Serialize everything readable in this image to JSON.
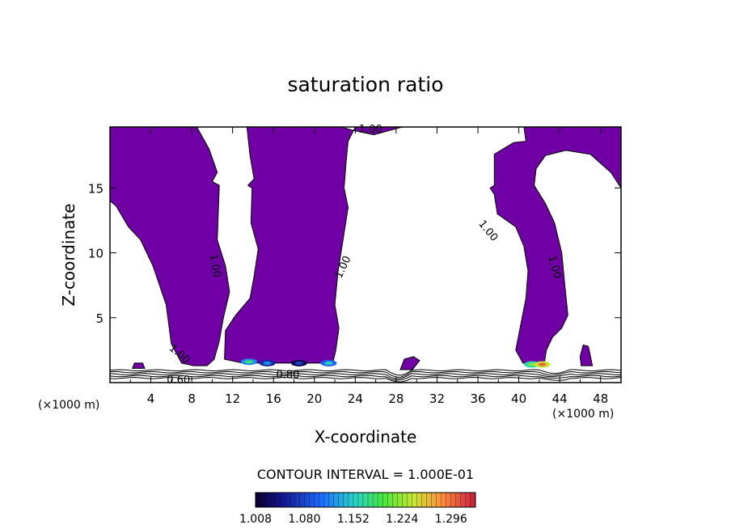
{
  "chart_data": {
    "type": "contour",
    "title": "saturation ratio",
    "xlabel": "X-coordinate",
    "ylabel": "Z-coordinate",
    "x_unit": "(×1000 m)",
    "x_ticks": [
      4,
      8,
      12,
      16,
      20,
      24,
      28,
      32,
      36,
      40,
      44,
      48
    ],
    "y_ticks": [
      5,
      10,
      15
    ],
    "xlim": [
      0,
      50
    ],
    "ylim": [
      0,
      19.7
    ],
    "contour_interval_text": "CONTOUR INTERVAL = 1.000E-01",
    "contour_labels": [
      {
        "text": "1.00",
        "x": 25.5,
        "y": 19.5,
        "rotate": 0
      },
      {
        "text": "1.00",
        "x": 10.3,
        "y": 9.0,
        "rotate": 80
      },
      {
        "text": "1.00",
        "x": 22.8,
        "y": 8.9,
        "rotate": -65
      },
      {
        "text": "1.00",
        "x": 37.0,
        "y": 11.7,
        "rotate": 50
      },
      {
        "text": "1.00",
        "x": 43.5,
        "y": 8.9,
        "rotate": 75
      },
      {
        "text": "1.00",
        "x": 6.8,
        "y": 2.2,
        "rotate": 40
      },
      {
        "text": "0.60",
        "x": 6.7,
        "y": 0.2,
        "rotate": 0
      },
      {
        "text": "0.80",
        "x": 17.4,
        "y": 0.6,
        "rotate": 0
      }
    ],
    "colorbar": {
      "tick_labels": [
        "1.008",
        "1.080",
        "1.152",
        "1.224",
        "1.296"
      ],
      "min": 1.008,
      "max": 1.332
    },
    "colors": {
      "fill": "#7000a6",
      "line": "#000000"
    },
    "supersaturated_regions": [
      [
        [
          0,
          14
        ],
        [
          0,
          19.7
        ],
        [
          8.5,
          19.7
        ],
        [
          9.7,
          18
        ],
        [
          10.5,
          16.2
        ],
        [
          10,
          15.5
        ],
        [
          10.7,
          15.2
        ],
        [
          10.5,
          11
        ],
        [
          11.3,
          9
        ],
        [
          11.7,
          7
        ],
        [
          11.1,
          5
        ],
        [
          10.7,
          3.2
        ],
        [
          10.2,
          1.8
        ],
        [
          9.5,
          1.3
        ],
        [
          8.2,
          1.3
        ],
        [
          7,
          1.5
        ],
        [
          6,
          3
        ],
        [
          5.5,
          6
        ],
        [
          4.2,
          9
        ],
        [
          3,
          11
        ],
        [
          1.8,
          12
        ],
        [
          0.6,
          13.6
        ]
      ],
      [
        [
          13.4,
          19.7
        ],
        [
          18,
          19.7
        ],
        [
          22.6,
          19.7
        ],
        [
          24,
          19.4
        ],
        [
          25.8,
          19.1
        ],
        [
          28.6,
          19.7
        ],
        [
          24,
          19.7
        ],
        [
          23.3,
          18.6
        ],
        [
          23.1,
          17
        ],
        [
          22.9,
          15
        ],
        [
          23.3,
          13.5
        ],
        [
          22.8,
          11
        ],
        [
          22.3,
          8.5
        ],
        [
          22,
          6
        ],
        [
          22.4,
          4.2
        ],
        [
          22.1,
          2.5
        ],
        [
          21.8,
          1.5
        ],
        [
          13,
          1.5
        ],
        [
          11.2,
          1.8
        ],
        [
          11.3,
          4
        ],
        [
          12.3,
          5.2
        ],
        [
          13.7,
          6.5
        ],
        [
          14.1,
          8.2
        ],
        [
          14.5,
          10.3
        ],
        [
          13.8,
          12.3
        ],
        [
          13.9,
          15
        ],
        [
          13.5,
          15.2
        ],
        [
          14.1,
          15.7
        ],
        [
          13.7,
          17.5
        ]
      ],
      [
        [
          40.4,
          1.5
        ],
        [
          42.5,
          1.5
        ],
        [
          42.7,
          2.5
        ],
        [
          43.3,
          3.5
        ],
        [
          44.2,
          4.2
        ],
        [
          44.8,
          5.2
        ],
        [
          44.5,
          7.5
        ],
        [
          44.2,
          10
        ],
        [
          43.5,
          12.3
        ],
        [
          42.6,
          13.8
        ],
        [
          41.5,
          15.2
        ],
        [
          41.7,
          16.5
        ],
        [
          42.6,
          17.5
        ],
        [
          44.6,
          17.9
        ],
        [
          47,
          17.6
        ],
        [
          49,
          16.2
        ],
        [
          50,
          15
        ],
        [
          50,
          19.7
        ],
        [
          40.5,
          19.7
        ],
        [
          40.7,
          18.6
        ],
        [
          39.5,
          18.5
        ],
        [
          37.6,
          17.6
        ],
        [
          37.6,
          15.2
        ],
        [
          37.2,
          15
        ],
        [
          37.6,
          14.5
        ],
        [
          37.9,
          13
        ],
        [
          39.7,
          12
        ],
        [
          40.5,
          10.5
        ],
        [
          40.9,
          8.6
        ],
        [
          40.7,
          6.5
        ],
        [
          40.2,
          4.5
        ],
        [
          39.7,
          2.5
        ]
      ],
      [
        [
          28.4,
          1
        ],
        [
          29.6,
          1
        ],
        [
          30.3,
          1.7
        ],
        [
          29.7,
          2
        ],
        [
          28.8,
          1.8
        ]
      ],
      [
        [
          46.1,
          1.3
        ],
        [
          47.2,
          1.3
        ],
        [
          46.8,
          2.8
        ],
        [
          46.3,
          2.9
        ],
        [
          46,
          2
        ]
      ],
      [
        [
          2.2,
          1.1
        ],
        [
          3.4,
          1.1
        ],
        [
          3.2,
          1.5
        ],
        [
          2.4,
          1.5
        ]
      ]
    ],
    "high_value_spots": [
      {
        "x": 13.6,
        "y": 1.6,
        "value": 1.18
      },
      {
        "x": 15.4,
        "y": 1.5,
        "value": 1.12
      },
      {
        "x": 18.5,
        "y": 1.5,
        "value": 1.08
      },
      {
        "x": 21.4,
        "y": 1.5,
        "value": 1.16
      },
      {
        "x": 41.3,
        "y": 1.4,
        "value": 1.22
      },
      {
        "x": 42.3,
        "y": 1.4,
        "value": 1.3
      }
    ]
  }
}
